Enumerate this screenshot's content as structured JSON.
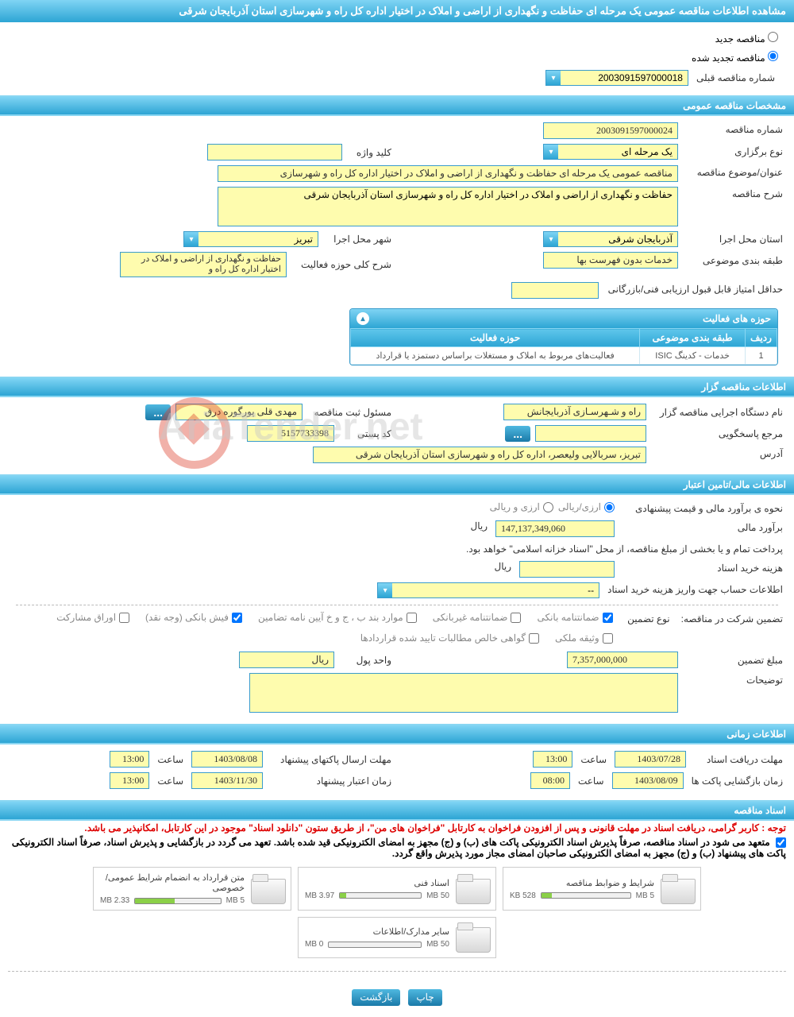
{
  "title": "مشاهده اطلاعات مناقصه عمومی یک مرحله ای حفاظت و نگهداری از اراضی و املاک در اختیار اداره کل راه و شهرسازی استان آذربایجان شرقی",
  "tender_status": {
    "new_label": "مناقصه جدید",
    "renewed_label": "مناقصه تجدید شده",
    "selected": "renewed"
  },
  "prev_number": {
    "label": "شماره مناقصه قبلی",
    "value": "2003091597000018"
  },
  "sections": {
    "general": "مشخصات مناقصه عمومی",
    "organizer": "اطلاعات مناقصه گزار",
    "financial": "اطلاعات مالی/تامین اعتبار",
    "timing": "اطلاعات زمانی",
    "documents": "اسناد مناقصه"
  },
  "general": {
    "number_label": "شماره مناقصه",
    "number": "2003091597000024",
    "type_label": "نوع برگزاری",
    "type": "یک مرحله ای",
    "keyword_label": "کلید واژه",
    "keyword": "",
    "subject_label": "عنوان/موضوع مناقصه",
    "subject": "مناقصه عمومی یک مرحله ای حفاظت و نگهداری از اراضی و املاک در اختیار اداره کل راه و شهرسازی",
    "description_label": "شرح مناقصه",
    "description": "حفاظت و نگهداری از اراضی و املاک در اختیار اداره کل راه و شهرسازی استان آذربایجان شرقی",
    "province_label": "استان محل اجرا",
    "province": "آذربایجان شرقی",
    "city_label": "شهر محل اجرا",
    "city": "تبریز",
    "category_label": "طبقه بندی موضوعی",
    "category": "خدمات بدون فهرست بها",
    "scope_label": "شرح کلی حوزه فعالیت",
    "scope": "حفاظت و نگهداری از اراضی و املاک در اختیار اداره کل راه و",
    "min_score_label": "حداقل امتیاز قابل قبول ارزیابی فنی/بازرگانی",
    "min_score": ""
  },
  "activity_panel": {
    "title": "حوزه های فعالیت",
    "columns": [
      "ردیف",
      "طبقه بندی موضوعی",
      "حوزه فعالیت"
    ],
    "rows": [
      {
        "num": "1",
        "category": "خدمات - کدینگ ISIC",
        "scope": "فعالیت‌های مربوط به املاک و مستغلات براساس دستمزد یا قرارداد"
      }
    ]
  },
  "organizer": {
    "org_label": "نام دستگاه اجرایی مناقصه گزار",
    "org": "راه و شـهرسـازی آذربایجانش",
    "registrar_label": "مسئول ثبت مناقصه",
    "registrar": "مهدی قلی پورگوره درق",
    "contact_label": "مرجع پاسخگویی",
    "contact": "",
    "postal_label": "کد پستی",
    "postal": "5157733398",
    "address_label": "آدرس",
    "address": "تبریز، سربالایی ولیعصر، اداره کل راه و شهرسازی استان آذربایجان شرقی"
  },
  "financial": {
    "method_label": "نحوه ی برآورد مالی و قیمت پیشنهادی",
    "method_options": [
      "ارزی/ریالی",
      "ارزی و ریالی"
    ],
    "method_selected": 0,
    "estimate_label": "برآورد مالی",
    "estimate": "147,137,349,060",
    "unit_rial": "ریال",
    "payment_note": "پرداخت تمام و یا بخشی از مبلغ مناقصه، از محل \"اسناد خزانه اسلامی\" خواهد بود.",
    "doc_fee_label": "هزینه خرید اسناد",
    "doc_fee": "",
    "deposit_account_label": "اطلاعات حساب جهت واریز هزینه خرید اسناد",
    "deposit_account": "--",
    "guarantee_label": "تضمین شرکت در مناقصه:",
    "guarantee_type_label": "نوع تضمین",
    "guarantee_options": [
      {
        "label": "ضمانتنامه بانکی",
        "checked": true
      },
      {
        "label": "ضمانتنامه غیربانکی",
        "checked": false
      },
      {
        "label": "موارد بند ب ، ج و خ آیین نامه تضامین",
        "checked": false
      },
      {
        "label": "فیش بانکی (وجه نقد)",
        "checked": true
      },
      {
        "label": "اوراق مشارکت",
        "checked": false
      },
      {
        "label": "وثیقه ملکی",
        "checked": false
      },
      {
        "label": "گواهی خالص مطالبات تایید شده قراردادها",
        "checked": false
      }
    ],
    "guarantee_amount_label": "مبلغ تضمین",
    "guarantee_amount": "7,357,000,000",
    "currency_unit_label": "واحد پول",
    "currency_unit": "ریال",
    "notes_label": "توضیحات",
    "notes": ""
  },
  "timing": {
    "doc_deadline_label": "مهلت دریافت اسناد",
    "doc_deadline_date": "1403/07/28",
    "doc_deadline_time": "13:00",
    "envelope_send_label": "مهلت ارسال پاکتهای پیشنهاد",
    "envelope_send_date": "1403/08/08",
    "envelope_send_time": "13:00",
    "envelope_open_label": "زمان بازگشایی پاکت ها",
    "envelope_open_date": "1403/08/09",
    "envelope_open_time": "08:00",
    "proposal_validity_label": "زمان اعتبار پیشنهاد",
    "proposal_validity_date": "1403/11/30",
    "proposal_validity_time": "13:00",
    "time_label": "ساعت"
  },
  "documents": {
    "notice_red": "توجه : کاربر گرامی، دریافت اسناد در مهلت قانونی و پس از افزودن فراخوان به کارتابل \"فراخوان های من\"، از طریق ستون \"دانلود اسناد\" موجود در این کارتابل، امکانپذیر می باشد.",
    "notice_black": "متعهد می شود در اسناد مناقصه، صرفاً پذیرش اسناد الکترونیکی پاکت های (ب) و (ج) مجهز به امضای الکترونیکی قید شده باشد. تعهد می گردد در بازگشایی و پذیرش اسناد، صرفاً اسناد الکترونیکی پاکت های پیشنهاد (ب) و (ج) مجهز به امضای الکترونیکی صاحبان امضای مجاز مورد پذیرش واقع گردد.",
    "files": [
      {
        "title": "شرایط و ضوابط مناقصه",
        "size": "528 KB",
        "max": "5 MB",
        "fill": 12
      },
      {
        "title": "اسناد فنی",
        "size": "3.97 MB",
        "max": "50 MB",
        "fill": 8
      },
      {
        "title": "متن قرارداد به انضمام شرایط عمومی/خصوصی",
        "size": "2.33 MB",
        "max": "5 MB",
        "fill": 46
      },
      {
        "title": "سایر مدارک/اطلاعات",
        "size": "0 MB",
        "max": "50 MB",
        "fill": 0
      }
    ]
  },
  "actions": {
    "print": "چاپ",
    "back": "بازگشت"
  },
  "colors": {
    "header_bg_top": "#7fd4f4",
    "header_bg_bottom": "#2da5d4",
    "input_bg": "#fefcae",
    "input_border": "#3a9ccc",
    "progress_fill": "#8bd048"
  }
}
